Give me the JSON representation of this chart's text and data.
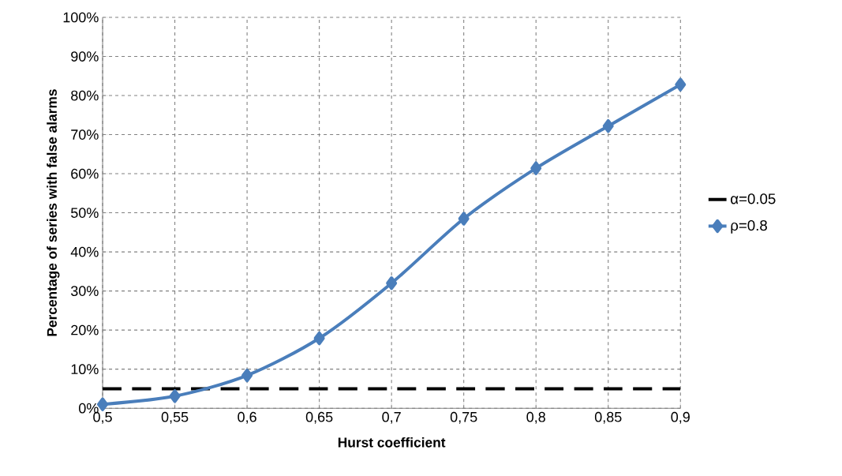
{
  "chart_data": {
    "type": "line",
    "xlabel": "Hurst  coefficient",
    "ylabel": "Percentage of series with false alarms",
    "x": [
      0.5,
      0.55,
      0.6,
      0.65,
      0.7,
      0.75,
      0.8,
      0.85,
      0.9
    ],
    "series": [
      {
        "name": "α=0.05",
        "color": "#000000",
        "marker": "none",
        "line_style": "dashed",
        "values": [
          5,
          5,
          5,
          5,
          5,
          5,
          5,
          5,
          5
        ]
      },
      {
        "name": "ρ=0.8",
        "color": "#4a7ebb",
        "marker": "diamond",
        "line_style": "solid",
        "values": [
          1,
          3.1,
          8.4,
          17.9,
          32,
          48.5,
          61.4,
          72.2,
          82.8
        ]
      }
    ],
    "xlim": [
      0.5,
      0.9
    ],
    "xticks": [
      {
        "value": 0.5,
        "label": "0,5"
      },
      {
        "value": 0.55,
        "label": "0,55"
      },
      {
        "value": 0.6,
        "label": "0,6"
      },
      {
        "value": 0.65,
        "label": "0,65"
      },
      {
        "value": 0.7,
        "label": "0,7"
      },
      {
        "value": 0.75,
        "label": "0,75"
      },
      {
        "value": 0.8,
        "label": "0,8"
      },
      {
        "value": 0.85,
        "label": "0,85"
      },
      {
        "value": 0.9,
        "label": "0,9"
      }
    ],
    "ylim": [
      0,
      100
    ],
    "yticks": [
      {
        "value": 0,
        "label": "0%"
      },
      {
        "value": 10,
        "label": "10%"
      },
      {
        "value": 20,
        "label": "20%"
      },
      {
        "value": 30,
        "label": "30%"
      },
      {
        "value": 40,
        "label": "40%"
      },
      {
        "value": 50,
        "label": "50%"
      },
      {
        "value": 60,
        "label": "60%"
      },
      {
        "value": 70,
        "label": "70%"
      },
      {
        "value": 80,
        "label": "80%"
      },
      {
        "value": 90,
        "label": "90%"
      },
      {
        "value": 100,
        "label": "100%"
      }
    ],
    "grid": true,
    "legend": "right"
  }
}
